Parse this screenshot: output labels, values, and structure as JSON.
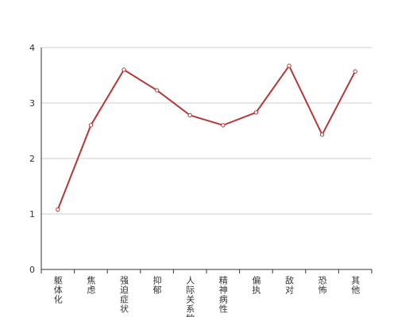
{
  "chart_data": {
    "type": "line",
    "categories": [
      "躯体化",
      "焦虑",
      "强迫症状",
      "抑郁",
      "人际关系敏感",
      "精神病性",
      "偏执",
      "敌对",
      "恐怖",
      "其他"
    ],
    "values": [
      1.08,
      2.6,
      3.6,
      3.23,
      2.78,
      2.6,
      2.83,
      3.67,
      2.43,
      3.57
    ],
    "color": "#b83535",
    "ylim": [
      0,
      4
    ],
    "yticks": [
      0,
      1,
      2,
      3,
      4
    ],
    "grid": true
  }
}
